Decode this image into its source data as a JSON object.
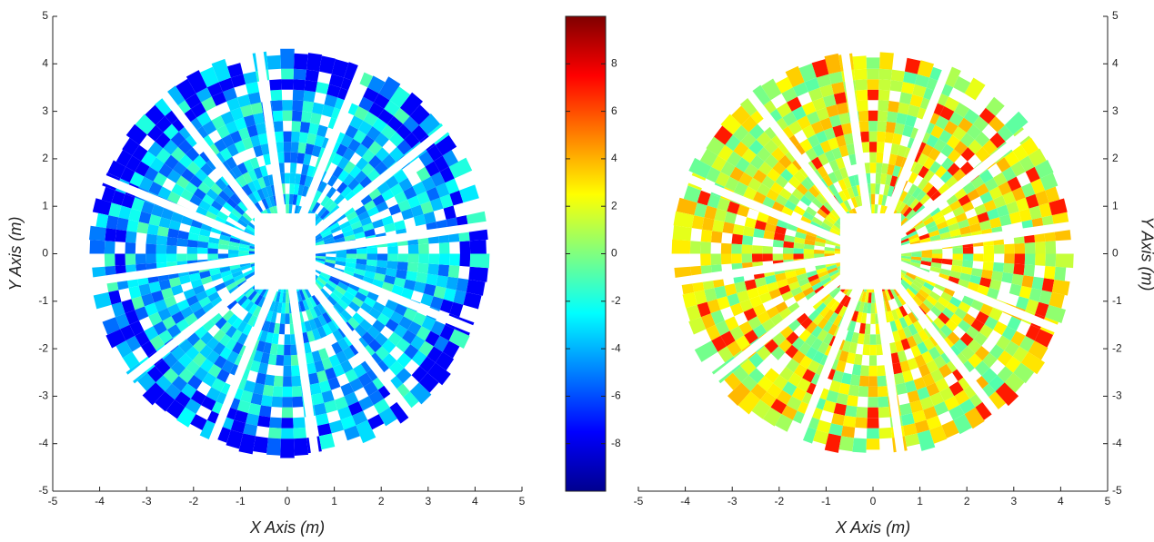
{
  "chart_data": [
    {
      "type": "heatmap",
      "xlabel": "X Axis (m)",
      "ylabel": "Y Axis (m)",
      "y_axis_side": "left",
      "xlim": [
        -5,
        5
      ],
      "ylim": [
        -5,
        5
      ],
      "xticks": [
        -5,
        -4,
        -3,
        -2,
        -1,
        0,
        1,
        2,
        3,
        4,
        5
      ],
      "yticks": [
        -5,
        -4,
        -3,
        -2,
        -1,
        0,
        1,
        2,
        3,
        4,
        5
      ]
    },
    {
      "type": "colorbar",
      "colormap": "jet",
      "ylim": [
        -10,
        10
      ],
      "yticks": [
        -8,
        -6,
        -4,
        -2,
        0,
        2,
        4,
        6,
        8
      ]
    },
    {
      "type": "heatmap",
      "xlabel": "X Axis (m)",
      "ylabel": "Y Axis (m)",
      "y_axis_side": "right",
      "xlim": [
        -5,
        5
      ],
      "ylim": [
        -5,
        5
      ],
      "xticks": [
        -5,
        -4,
        -3,
        -2,
        -1,
        0,
        1,
        2,
        3,
        4,
        5
      ],
      "yticks": [
        -5,
        -4,
        -3,
        -2,
        -1,
        0,
        1,
        2,
        3,
        4,
        5
      ]
    }
  ]
}
